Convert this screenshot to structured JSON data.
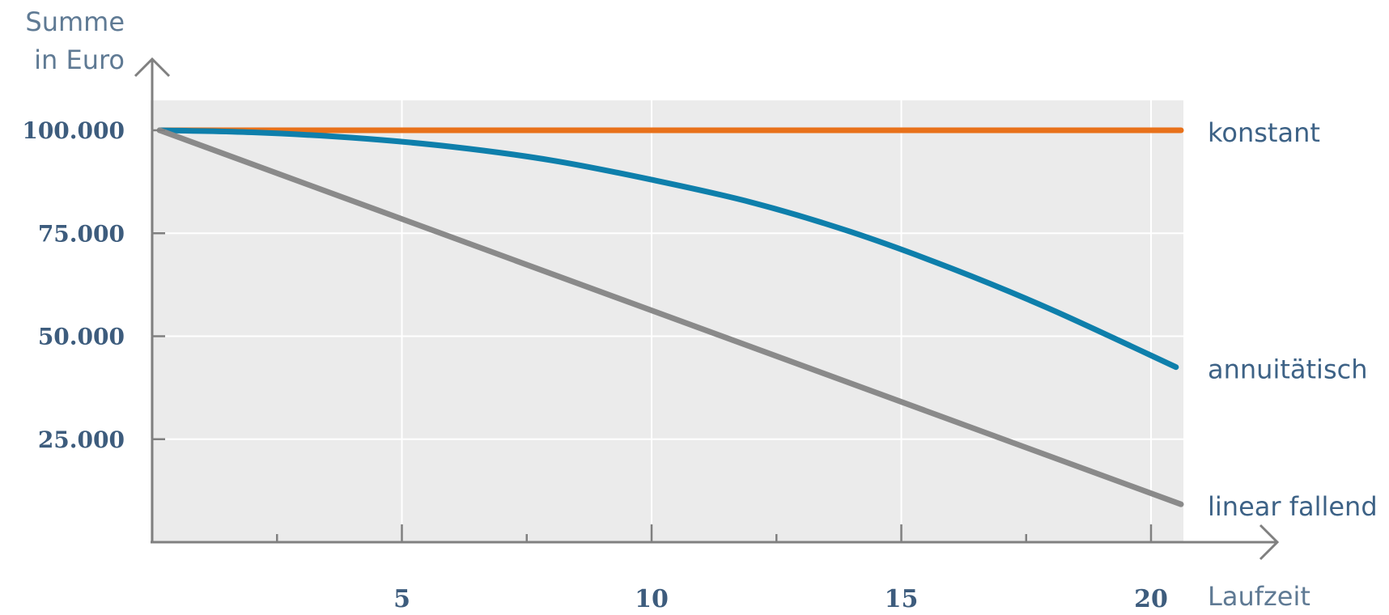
{
  "chart_data": {
    "type": "line",
    "xlabel": "Laufzeit",
    "ylabel_lines": [
      "Summe",
      "in Euro"
    ],
    "xlim": [
      0,
      20.6
    ],
    "ylim": [
      0,
      112000
    ],
    "x_ticks": [
      {
        "value": 2.5,
        "label": ""
      },
      {
        "value": 5,
        "label": "5"
      },
      {
        "value": 7.5,
        "label": ""
      },
      {
        "value": 10,
        "label": "10"
      },
      {
        "value": 12.5,
        "label": ""
      },
      {
        "value": 15,
        "label": "15"
      },
      {
        "value": 17.5,
        "label": ""
      },
      {
        "value": 20,
        "label": "20"
      }
    ],
    "y_ticks": [
      {
        "value": 25000,
        "label": "25.000"
      },
      {
        "value": 50000,
        "label": "50.000"
      },
      {
        "value": 75000,
        "label": "75.000"
      },
      {
        "value": 100000,
        "label": "100.000"
      }
    ],
    "grid": true,
    "legend": "inline-right",
    "series": [
      {
        "name": "konstant",
        "color": "#e8711a",
        "points": [
          [
            0.15,
            100000
          ],
          [
            20.6,
            100000
          ]
        ]
      },
      {
        "name": "annuitätisch",
        "color": "#0e7fab",
        "points": [
          [
            0.15,
            100000
          ],
          [
            2,
            99500
          ],
          [
            4,
            98200
          ],
          [
            6,
            96000
          ],
          [
            8,
            92700
          ],
          [
            10,
            88000
          ],
          [
            12,
            82500
          ],
          [
            14,
            75300
          ],
          [
            16,
            66500
          ],
          [
            18,
            56500
          ],
          [
            20.5,
            42500
          ]
        ]
      },
      {
        "name": "linear fallend",
        "color": "#8a8a8a",
        "points": [
          [
            0.15,
            100000
          ],
          [
            20.6,
            9200
          ]
        ]
      }
    ]
  }
}
